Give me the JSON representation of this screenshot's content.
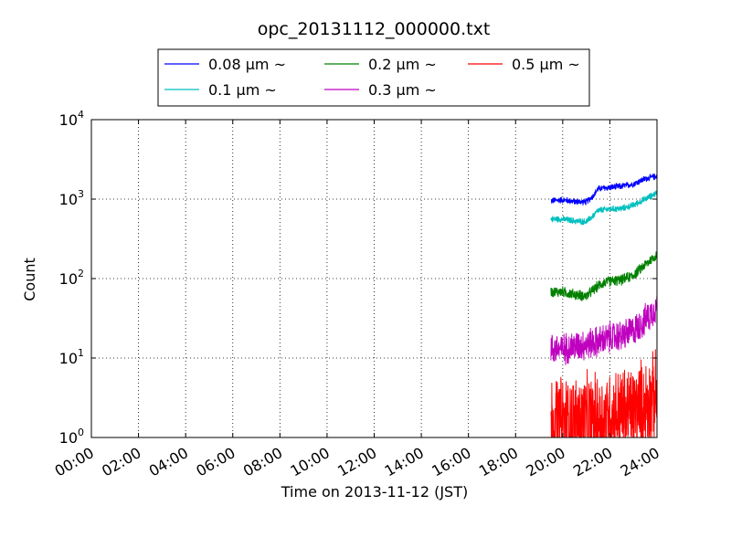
{
  "chart_data": {
    "type": "line",
    "title": "opc_20131112_000000.txt",
    "xlabel": "Time on 2013-11-12 (JST)",
    "ylabel": "Count",
    "x_unit": "hours",
    "xlim": [
      0,
      24
    ],
    "ylim": [
      1,
      10000
    ],
    "yscale": "log",
    "grid": true,
    "legend_position": "top-center, outside the plot, three columns",
    "x_ticks": [
      "00:00",
      "02:00",
      "04:00",
      "06:00",
      "08:00",
      "10:00",
      "12:00",
      "14:00",
      "16:00",
      "18:00",
      "20:00",
      "22:00",
      "24:00"
    ],
    "y_ticks": [
      {
        "base": "10",
        "exp": "0"
      },
      {
        "base": "10",
        "exp": "1"
      },
      {
        "base": "10",
        "exp": "2"
      },
      {
        "base": "10",
        "exp": "3"
      },
      {
        "base": "10",
        "exp": "4"
      }
    ],
    "series": [
      {
        "name": "0.08 μm ~",
        "color": "#0000ff",
        "x": [
          19.5,
          20.0,
          20.5,
          21.0,
          21.3,
          21.5,
          22.0,
          22.5,
          23.0,
          23.5,
          24.0
        ],
        "y": [
          950,
          980,
          930,
          920,
          1100,
          1350,
          1400,
          1450,
          1550,
          1800,
          1950
        ],
        "noise": 0.09
      },
      {
        "name": "0.1 μm ~",
        "color": "#00bfbf",
        "x": [
          19.5,
          20.0,
          20.5,
          21.0,
          21.3,
          21.5,
          22.0,
          22.5,
          23.0,
          23.5,
          24.0
        ],
        "y": [
          560,
          560,
          530,
          520,
          620,
          720,
          750,
          760,
          840,
          1000,
          1200
        ],
        "noise": 0.09
      },
      {
        "name": "0.2 μm ~",
        "color": "#008000",
        "x": [
          19.5,
          20.0,
          20.5,
          21.0,
          21.3,
          21.6,
          22.0,
          22.5,
          23.0,
          23.5,
          24.0
        ],
        "y": [
          68,
          68,
          63,
          60,
          72,
          85,
          93,
          96,
          110,
          150,
          200
        ],
        "noise": 0.15
      },
      {
        "name": "0.3 μm ~",
        "color": "#bf00bf",
        "x": [
          19.5,
          20.0,
          20.5,
          21.0,
          21.5,
          22.0,
          22.5,
          23.0,
          23.5,
          24.0
        ],
        "y": [
          13,
          13,
          14,
          15,
          16,
          18,
          19,
          22,
          30,
          45
        ],
        "noise": 0.45
      },
      {
        "name": "0.5 μm ~",
        "color": "#ff0000",
        "x": [
          19.5,
          20.5,
          21.5,
          22.0,
          23.0,
          24.0
        ],
        "y": [
          1.6,
          1.6,
          1.7,
          1.9,
          2.2,
          3.2
        ],
        "noise": 1.2
      }
    ]
  }
}
